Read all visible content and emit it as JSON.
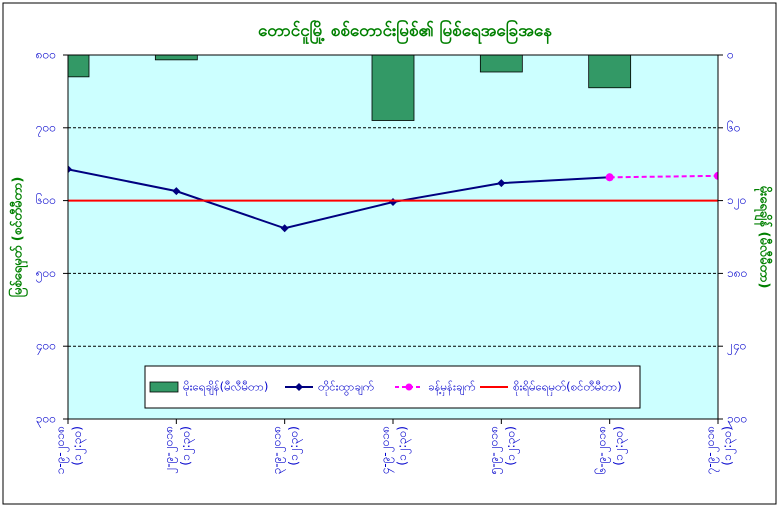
{
  "chart_data": {
    "type": "combo",
    "title": "တောင်ငူမြို့ စစ်တောင်းမြစ်၏ မြစ်ရေအခြေအနေ",
    "ylabel": "မြစ်ရေမှတ် (စင်တီမီတာ)",
    "y2label": "မိုးရေချိန် (မီလီမီတာ)",
    "categories": [
      "၁-၉-၂၀၁၈ (၁၂:၃၀)",
      "၂-၉-၂၀၁၈ (၁၂:၃၀)",
      "၃-၉-၂၀၁၈ (၁၂:၃၀)",
      "၄-၉-၂၀၁၈ (၁၂:၃၀)",
      "၅-၉-၂၀၁၈ (၁၂:၃၀)",
      "၆-၉-၂၀၁၈ (၁၂:၃၀)",
      "၇-၉-၂၀၁၈ (၁၂:၃၀)"
    ],
    "ylim": [
      300,
      800
    ],
    "yticks": [
      {
        "value": 800,
        "label": "၈၀၀"
      },
      {
        "value": 700,
        "label": "၇၀၀"
      },
      {
        "value": 600,
        "label": "၆၀၀"
      },
      {
        "value": 500,
        "label": "၅၀၀"
      },
      {
        "value": 400,
        "label": "၄၀၀"
      },
      {
        "value": 300,
        "label": "၃၀၀"
      }
    ],
    "y2lim": [
      300,
      0
    ],
    "y2ticks": [
      {
        "value": 0,
        "label": "၀"
      },
      {
        "value": 60,
        "label": "၆၀"
      },
      {
        "value": 120,
        "label": "၁၂၀"
      },
      {
        "value": 180,
        "label": "၁၈၀"
      },
      {
        "value": 240,
        "label": "၂၄၀"
      },
      {
        "value": 300,
        "label": "၃၀၀"
      }
    ],
    "grid": true,
    "series": [
      {
        "name": "မိုးရေချိန်(မီလီမီတာ)",
        "kind": "bar",
        "axis": "y2",
        "color": "#339966",
        "values": [
          18,
          4,
          null,
          54,
          14,
          27,
          null
        ]
      },
      {
        "name": "တိုင်းထွာချက်",
        "kind": "line",
        "color": "#000080",
        "values": [
          643,
          613,
          562,
          598,
          624,
          632,
          null
        ]
      },
      {
        "name": "ခန့်မှန်းချက်",
        "kind": "dashed-line",
        "color": "#ff00ff",
        "values": [
          null,
          null,
          null,
          null,
          null,
          632,
          634
        ]
      },
      {
        "name": "စိုးရိမ်ရေမှတ်(စင်တီမီတာ)",
        "kind": "level",
        "color": "#ff0000",
        "value": 600
      }
    ]
  }
}
